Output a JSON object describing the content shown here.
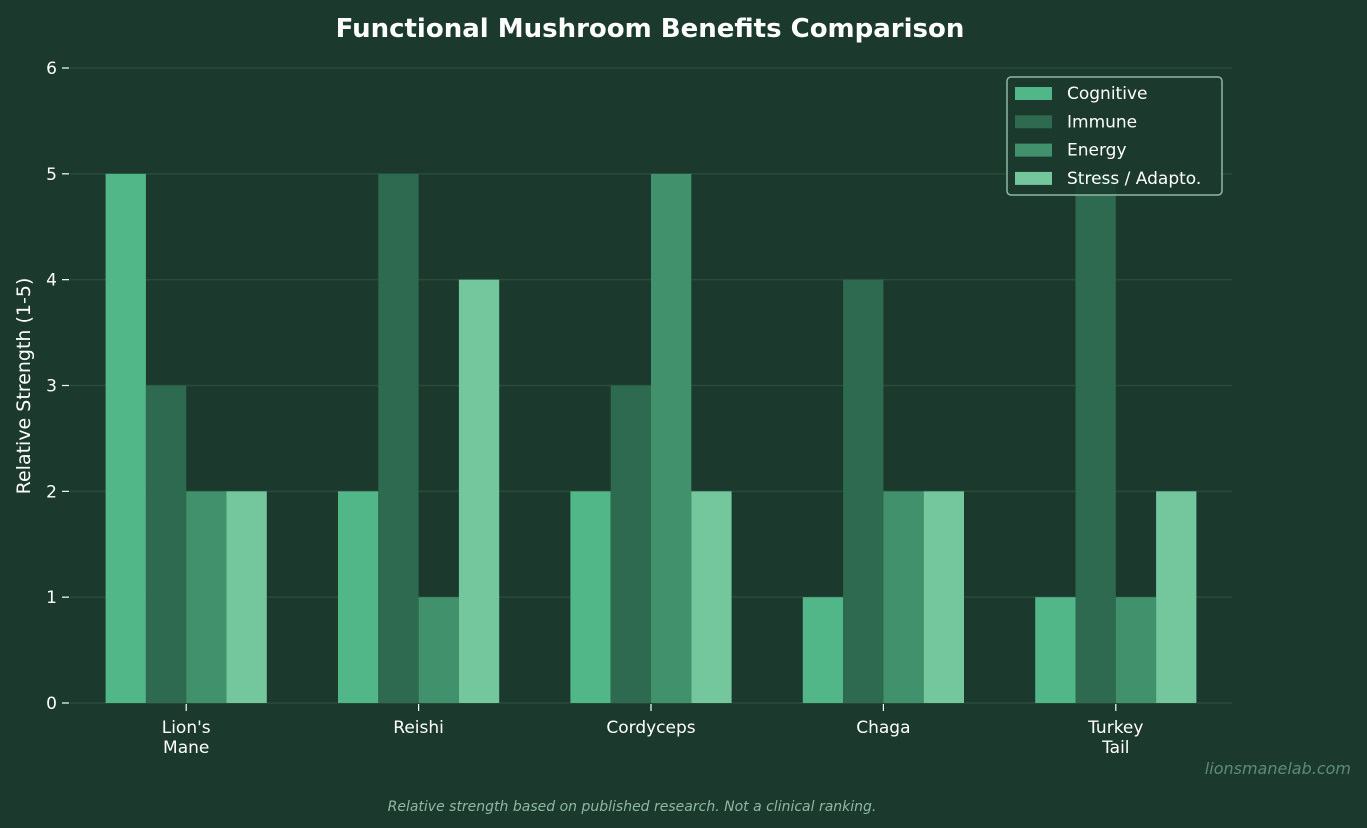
{
  "chart_data": {
    "type": "bar",
    "title": "Functional Mushroom Benefits Comparison",
    "xlabel": "",
    "ylabel": "Relative Strength (1-5)",
    "ylim": [
      0,
      6
    ],
    "yticks": [
      0,
      1,
      2,
      3,
      4,
      5,
      6
    ],
    "grid": true,
    "legend_placement": "top-right",
    "categories": [
      [
        "Lion's",
        "Mane"
      ],
      [
        "Reishi"
      ],
      [
        "Cordyceps"
      ],
      [
        "Chaga"
      ],
      [
        "Turkey",
        "Tail"
      ]
    ],
    "series": [
      {
        "name": "Cognitive",
        "color": "#52b788",
        "values": [
          5,
          2,
          2,
          1,
          1
        ]
      },
      {
        "name": "Immune",
        "color": "#2d6a4f",
        "values": [
          3,
          5,
          3,
          4,
          5
        ]
      },
      {
        "name": "Energy",
        "color": "#40916c",
        "values": [
          2,
          1,
          5,
          2,
          1
        ]
      },
      {
        "name": "Stress / Adapto.",
        "color": "#74c69d",
        "values": [
          2,
          4,
          2,
          2,
          2
        ]
      }
    ],
    "footnote": "Relative strength based on published research. Not a clinical ranking.",
    "watermark": "lionsmanelab.com"
  },
  "colors": {
    "background": "#1b3a2d",
    "grid": "#2a4a3c",
    "text": "#ffffff"
  }
}
